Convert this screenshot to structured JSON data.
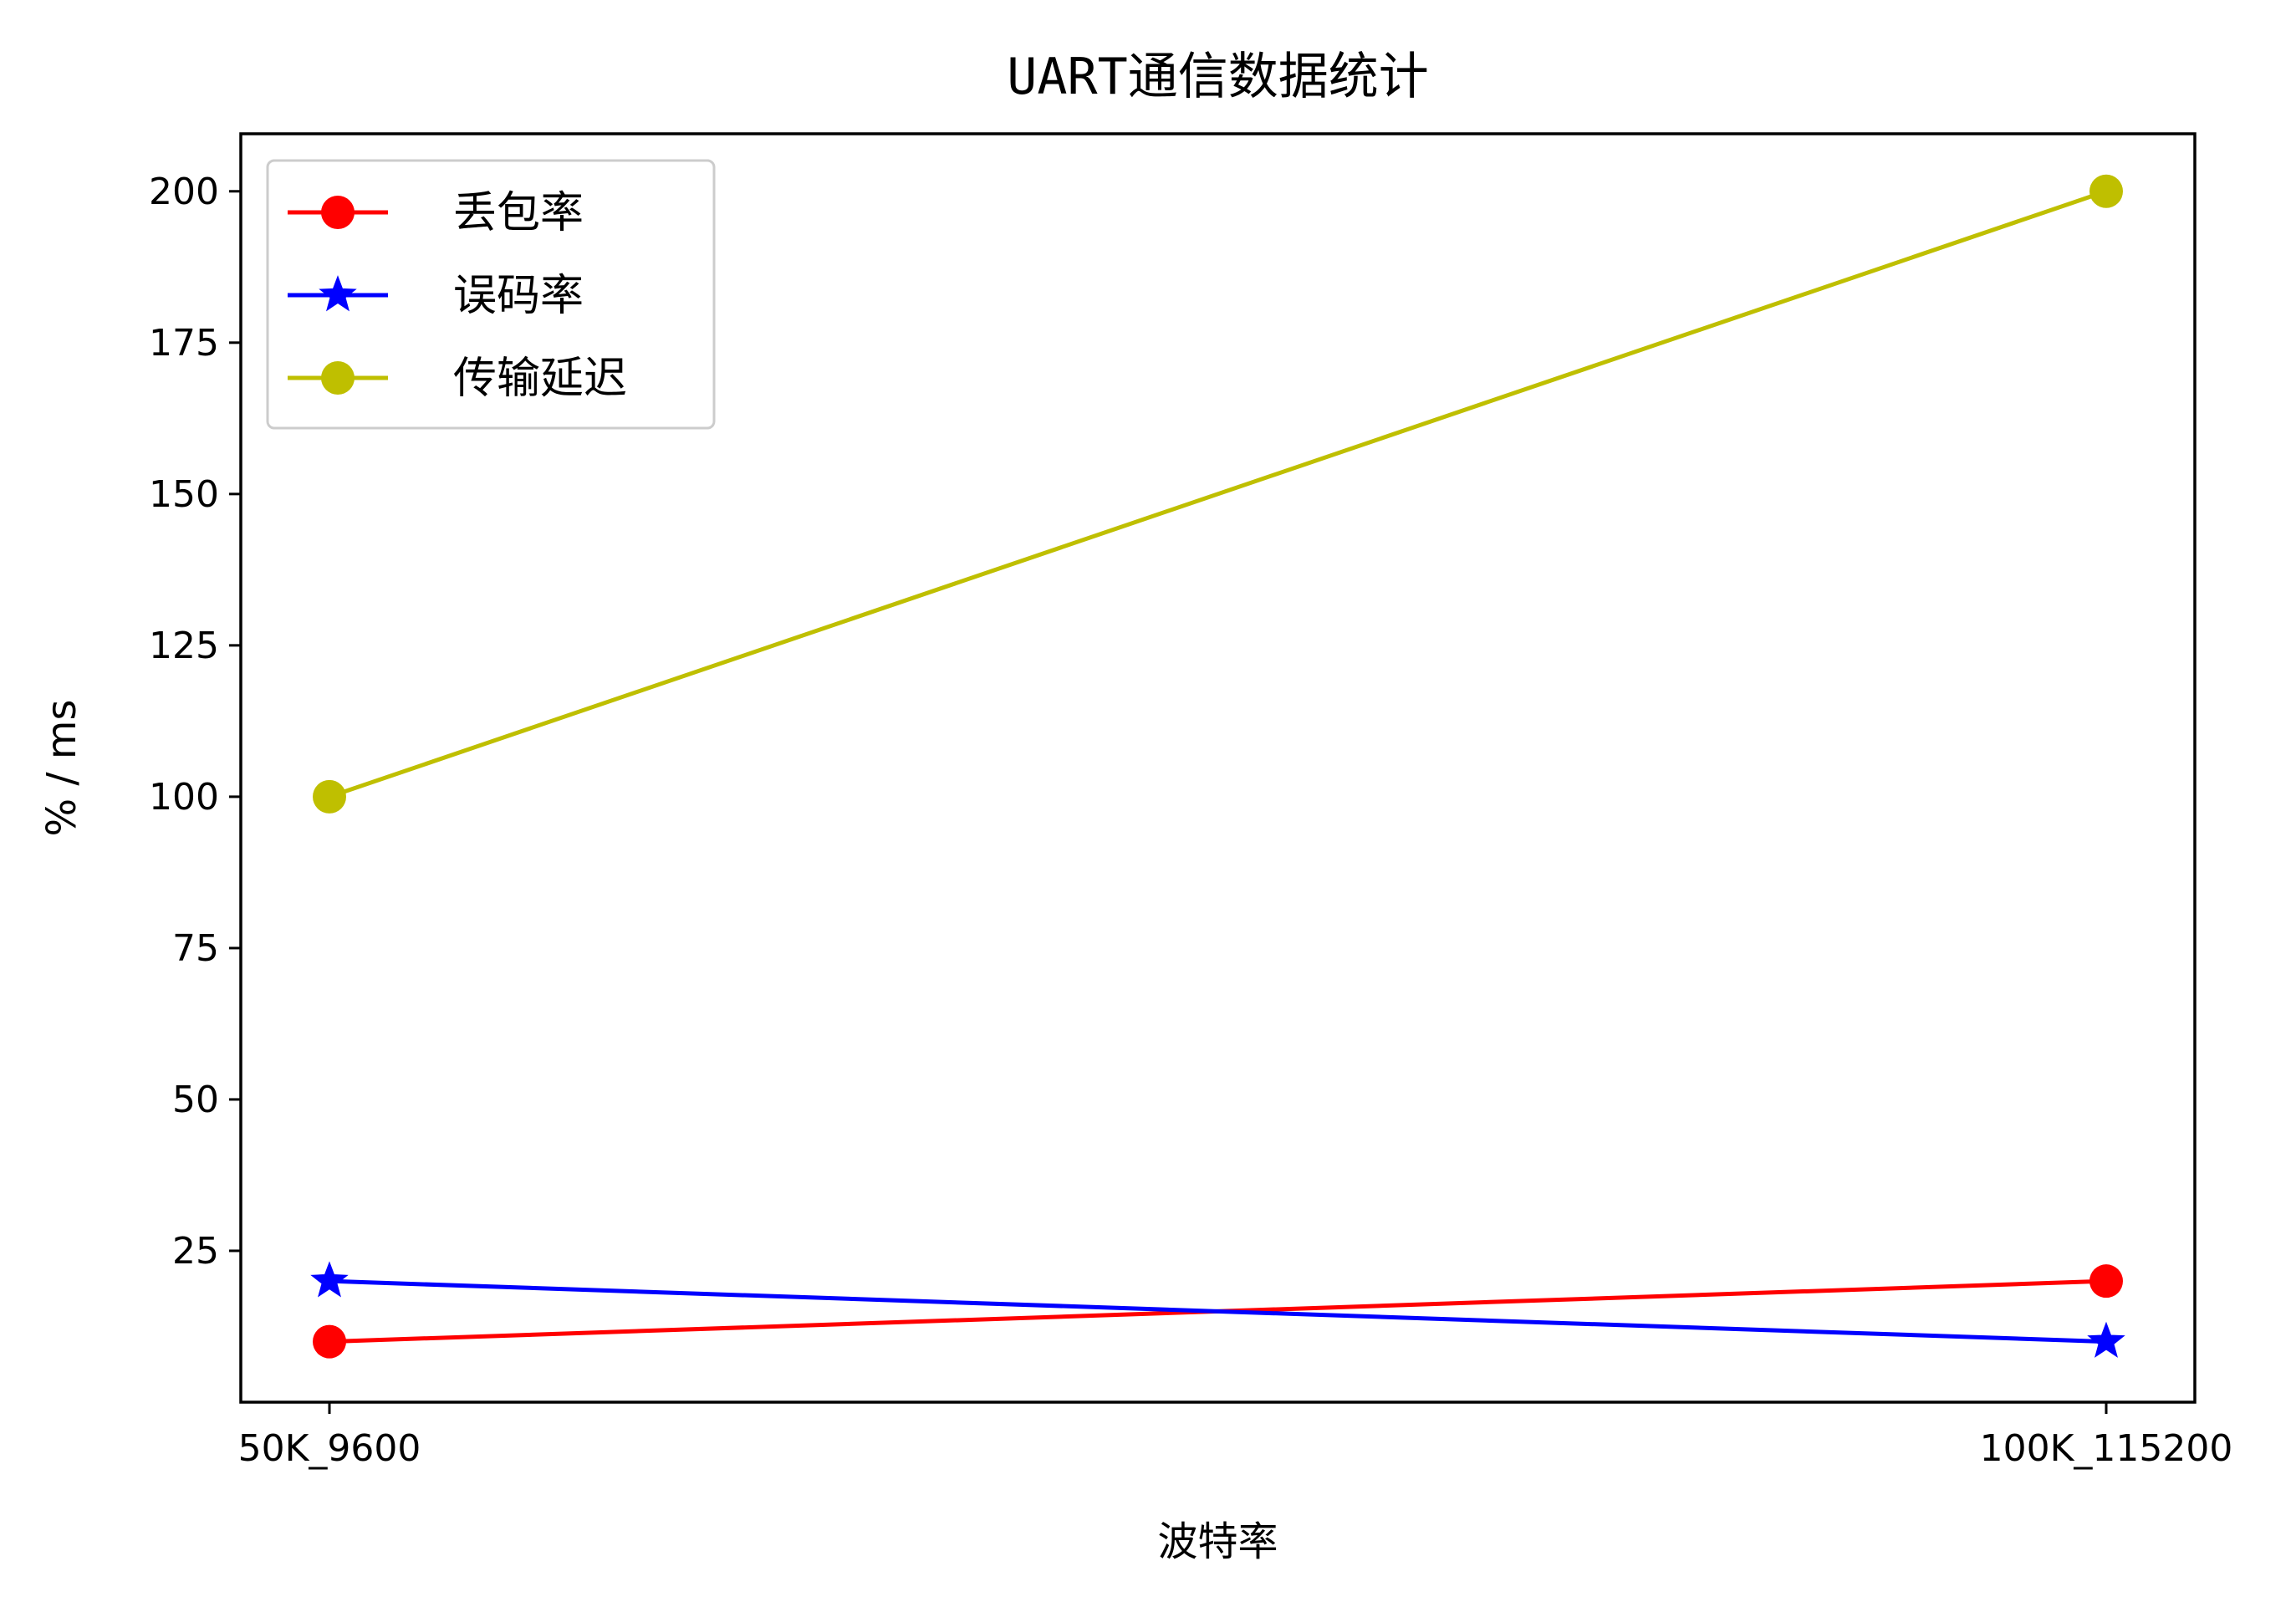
{
  "chart_data": {
    "type": "line",
    "title": "UART通信数据统计",
    "xlabel": "波特率",
    "ylabel": "% / ms",
    "categories": [
      "50K_9600",
      "100K_115200"
    ],
    "ylim": [
      0,
      209.5
    ],
    "yticks": [
      25,
      50,
      75,
      100,
      125,
      150,
      175,
      200
    ],
    "grid": false,
    "legend_position": "top-left",
    "series": [
      {
        "name": "丢包率",
        "values": [
          10,
          20
        ],
        "color": "#ff0000",
        "marker": "circle"
      },
      {
        "name": "误码率",
        "values": [
          20,
          10
        ],
        "color": "#0000ff",
        "marker": "star"
      },
      {
        "name": "传输延迟",
        "values": [
          100,
          200
        ],
        "color": "#bfbf00",
        "marker": "circle"
      }
    ]
  }
}
